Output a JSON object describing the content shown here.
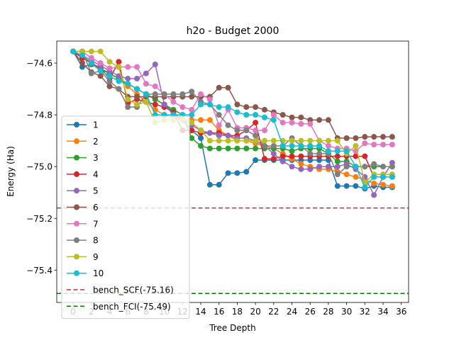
{
  "chart_data": {
    "type": "line",
    "title": "h2o - Budget  2000",
    "xlabel": "Tree Depth",
    "ylabel": "Energy (Ha)",
    "xlim": [
      -1.8,
      36.8
    ],
    "ylim": [
      -75.525,
      -74.515
    ],
    "xticks": [
      0,
      2,
      4,
      6,
      8,
      10,
      12,
      14,
      16,
      18,
      20,
      22,
      24,
      26,
      28,
      30,
      32,
      34,
      36
    ],
    "yticks": [
      -74.6,
      -74.8,
      -75.0,
      -75.2,
      -75.4
    ],
    "ytick_labels": [
      "−74.6",
      "−74.8",
      "−75.0",
      "−75.2",
      "−75.4"
    ],
    "grid": false,
    "legend_position": "lower-left",
    "series": [
      {
        "name": "1",
        "color": "#1f77b4",
        "x": [
          0,
          1,
          2,
          3,
          4,
          5,
          6,
          7,
          8,
          9,
          10,
          11,
          12,
          13,
          14,
          15,
          16,
          17,
          18,
          19,
          20,
          21,
          22,
          23,
          24,
          25,
          26,
          27,
          28,
          29,
          30,
          31,
          32,
          33,
          34,
          35
        ],
        "y": [
          -74.555,
          -74.615,
          -74.605,
          -74.625,
          -74.64,
          -74.66,
          -74.68,
          -74.7,
          -74.72,
          -74.74,
          -74.76,
          -74.79,
          -74.82,
          -74.86,
          -74.89,
          -75.07,
          -75.07,
          -75.025,
          -75.025,
          -75.02,
          -74.975,
          -74.975,
          -74.975,
          -74.975,
          -74.975,
          -74.975,
          -74.975,
          -74.975,
          -74.975,
          -75.075,
          -75.075,
          -75.075,
          -75.085,
          -75.075,
          -75.08,
          -75.08
        ]
      },
      {
        "name": "2",
        "color": "#ff7f0e",
        "x": [
          0,
          1,
          2,
          3,
          4,
          5,
          6,
          7,
          8,
          9,
          10,
          11,
          12,
          13,
          14,
          15,
          16,
          17,
          18,
          19,
          20,
          21,
          22,
          23,
          24,
          25,
          26,
          27,
          28,
          29,
          30,
          31,
          32,
          33,
          34,
          35
        ],
        "y": [
          -74.555,
          -74.575,
          -74.6,
          -74.62,
          -74.64,
          -74.66,
          -74.69,
          -74.72,
          -74.75,
          -74.78,
          -74.8,
          -74.81,
          -74.82,
          -74.82,
          -74.82,
          -74.82,
          -74.86,
          -74.88,
          -74.9,
          -74.9,
          -74.91,
          -74.92,
          -74.93,
          -74.95,
          -74.97,
          -74.99,
          -75.0,
          -75.01,
          -75.01,
          -75.02,
          -75.03,
          -75.04,
          -75.05,
          -75.065,
          -75.07,
          -75.075
        ]
      },
      {
        "name": "3",
        "color": "#2ca02c",
        "x": [
          0,
          1,
          2,
          3,
          4,
          5,
          6,
          7,
          8,
          9,
          10,
          11,
          12,
          13,
          14,
          15,
          16,
          17,
          18,
          19,
          20,
          21,
          22,
          23,
          24,
          25,
          26,
          27,
          28,
          29,
          30,
          31,
          32,
          33,
          34,
          35
        ],
        "y": [
          -74.555,
          -74.58,
          -74.6,
          -74.62,
          -74.64,
          -74.66,
          -74.68,
          -74.7,
          -74.72,
          -74.74,
          -74.76,
          -74.78,
          -74.8,
          -74.89,
          -74.92,
          -74.93,
          -74.93,
          -74.93,
          -74.93,
          -74.93,
          -74.93,
          -74.93,
          -74.93,
          -74.93,
          -74.94,
          -74.93,
          -74.93,
          -74.93,
          -74.95,
          -74.98,
          -74.98,
          -75.0,
          -75.0,
          -75.0,
          -75.0,
          -75.0
        ]
      },
      {
        "name": "4",
        "color": "#d62728",
        "x": [
          0,
          1,
          2,
          3,
          4,
          5,
          6,
          7,
          8,
          9,
          10,
          11,
          12,
          13,
          14,
          15,
          16,
          17,
          18,
          19,
          20,
          21,
          22,
          23,
          24,
          25,
          26,
          27,
          28,
          29,
          30,
          31,
          32,
          33,
          34,
          35
        ],
        "y": [
          -74.555,
          -74.58,
          -74.6,
          -74.62,
          -74.66,
          -74.595,
          -74.755,
          -74.74,
          -74.75,
          -74.76,
          -74.77,
          -74.79,
          -74.86,
          -74.86,
          -74.87,
          -74.87,
          -74.87,
          -74.88,
          -74.88,
          -74.86,
          -74.83,
          -74.97,
          -74.97,
          -74.96,
          -74.96,
          -74.96,
          -74.96,
          -74.96,
          -74.96,
          -74.96,
          -74.96,
          -74.96,
          -74.96,
          -75.04,
          -75.04,
          -75.04
        ]
      },
      {
        "name": "5",
        "color": "#9467bd",
        "x": [
          0,
          1,
          2,
          3,
          4,
          5,
          6,
          7,
          8,
          9,
          10,
          11,
          12,
          13,
          14,
          15,
          16,
          17,
          18,
          19,
          20,
          21,
          22,
          23,
          24,
          25,
          26,
          27,
          28,
          29,
          30,
          31,
          32,
          33,
          34,
          35
        ],
        "y": [
          -74.555,
          -74.57,
          -74.59,
          -74.61,
          -74.63,
          -74.65,
          -74.66,
          -74.66,
          -74.64,
          -74.605,
          -74.76,
          -74.8,
          -74.82,
          -74.84,
          -74.86,
          -74.87,
          -74.88,
          -74.88,
          -74.89,
          -74.89,
          -74.9,
          -74.92,
          -74.95,
          -74.98,
          -75.0,
          -75.01,
          -75.01,
          -75.0,
          -75.0,
          -75.0,
          -74.99,
          -75.01,
          -75.04,
          -75.11,
          -75.04,
          -74.985
        ]
      },
      {
        "name": "6",
        "color": "#8c564b",
        "x": [
          0,
          1,
          2,
          3,
          4,
          5,
          6,
          7,
          8,
          9,
          10,
          11,
          12,
          13,
          14,
          15,
          16,
          17,
          18,
          19,
          20,
          21,
          22,
          23,
          24,
          25,
          26,
          27,
          28,
          29,
          30,
          31,
          32,
          33,
          34,
          35
        ],
        "y": [
          -74.555,
          -74.6,
          -74.635,
          -74.65,
          -74.69,
          -74.7,
          -74.73,
          -74.73,
          -74.73,
          -74.73,
          -74.73,
          -74.73,
          -74.73,
          -74.73,
          -74.73,
          -74.73,
          -74.695,
          -74.695,
          -74.76,
          -74.77,
          -74.77,
          -74.78,
          -74.79,
          -74.8,
          -74.81,
          -74.81,
          -74.82,
          -74.82,
          -74.82,
          -74.89,
          -74.89,
          -74.89,
          -74.885,
          -74.885,
          -74.885,
          -74.885
        ]
      },
      {
        "name": "7",
        "color": "#e377c2",
        "x": [
          0,
          1,
          2,
          3,
          4,
          5,
          6,
          7,
          8,
          9,
          10,
          11,
          12,
          13,
          14,
          15,
          16,
          17,
          18,
          19,
          20,
          21,
          22,
          23,
          24,
          25,
          26,
          27,
          28,
          29,
          30,
          31,
          32,
          33,
          34,
          35
        ],
        "y": [
          -74.555,
          -74.555,
          -74.58,
          -74.6,
          -74.62,
          -74.615,
          -74.615,
          -74.615,
          -74.68,
          -74.69,
          -74.72,
          -74.75,
          -74.77,
          -74.78,
          -74.72,
          -74.74,
          -74.84,
          -74.78,
          -74.85,
          -74.85,
          -74.86,
          -74.86,
          -74.8,
          -74.83,
          -74.83,
          -74.835,
          -74.835,
          -74.9,
          -74.92,
          -74.93,
          -74.93,
          -74.94,
          -74.91,
          -74.915,
          -74.915,
          -74.915
        ]
      },
      {
        "name": "8",
        "color": "#7f7f7f",
        "x": [
          0,
          1,
          2,
          3,
          4,
          5,
          6,
          7,
          8,
          9,
          10,
          11,
          12,
          13,
          14,
          15,
          16,
          17,
          18,
          19,
          20,
          21,
          22,
          23,
          24,
          25,
          26,
          27,
          28,
          29,
          30,
          31,
          32,
          33,
          34,
          35
        ],
        "y": [
          -74.555,
          -74.555,
          -74.64,
          -74.63,
          -74.67,
          -74.7,
          -74.77,
          -74.77,
          -74.72,
          -74.72,
          -74.72,
          -74.72,
          -74.72,
          -74.71,
          -74.75,
          -74.76,
          -74.8,
          -74.84,
          -74.86,
          -74.86,
          -74.88,
          -74.92,
          -74.92,
          -74.92,
          -74.89,
          -74.92,
          -74.95,
          -74.95,
          -74.95,
          -75.03,
          -75.0,
          -75.0,
          -75.0,
          -74.99,
          -75.0,
          -75.0
        ]
      },
      {
        "name": "9",
        "color": "#bcbd22",
        "x": [
          0,
          1,
          2,
          3,
          4,
          5,
          6,
          7,
          8,
          9,
          10,
          11,
          12,
          13,
          14,
          15,
          16,
          17,
          18,
          19,
          20,
          21,
          22,
          23,
          24,
          25,
          26,
          27,
          28,
          29,
          30,
          31,
          32,
          33,
          34,
          35
        ],
        "y": [
          -74.555,
          -74.555,
          -74.555,
          -74.555,
          -74.595,
          -74.615,
          -74.74,
          -74.76,
          -74.75,
          -74.83,
          -74.82,
          -74.82,
          -74.82,
          -74.83,
          -74.86,
          -74.9,
          -74.9,
          -74.9,
          -74.9,
          -74.9,
          -74.9,
          -74.9,
          -74.9,
          -74.9,
          -74.9,
          -74.9,
          -74.9,
          -74.9,
          -74.9,
          -74.9,
          -74.95,
          -74.92,
          -75.06,
          -75.03,
          -75.03,
          -75.03
        ]
      },
      {
        "name": "10",
        "color": "#17becf",
        "x": [
          0,
          1,
          2,
          3,
          4,
          5,
          6,
          7,
          8,
          9,
          10,
          11,
          12,
          13,
          14,
          15,
          16,
          17,
          18,
          19,
          20,
          21,
          22,
          23,
          24,
          25,
          26,
          27,
          28,
          29,
          30,
          31,
          32,
          33,
          34,
          35
        ],
        "y": [
          -74.555,
          -74.57,
          -74.6,
          -74.63,
          -74.65,
          -74.67,
          -74.68,
          -74.7,
          -74.72,
          -74.8,
          -74.8,
          -74.8,
          -74.8,
          -74.8,
          -74.76,
          -74.76,
          -74.77,
          -74.77,
          -74.79,
          -74.8,
          -74.8,
          -74.81,
          -74.82,
          -74.92,
          -74.92,
          -74.92,
          -74.92,
          -74.92,
          -74.94,
          -74.94,
          -74.94,
          -75.0,
          -75.08,
          -75.04,
          -75.04,
          -75.04
        ]
      }
    ],
    "reference_lines": [
      {
        "name": "bench_SCF(-75.16)",
        "y": -75.16,
        "color": "#d62728",
        "style": "dashed"
      },
      {
        "name": "bench_FCI(-75.49)",
        "y": -75.49,
        "color": "#008000",
        "style": "dashed"
      }
    ]
  }
}
